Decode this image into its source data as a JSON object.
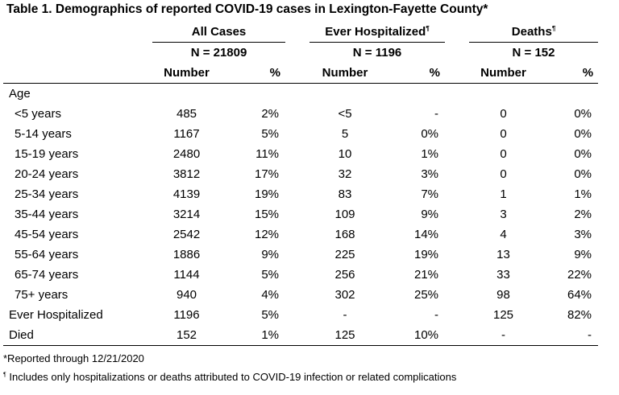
{
  "title": "Table 1. Demographics of reported COVID-19 cases in Lexington-Fayette County*",
  "groups": [
    {
      "label": "All Cases",
      "marker": "",
      "n": "N = 21809"
    },
    {
      "label": "Ever Hospitalized",
      "marker": "¶",
      "n": "N = 1196"
    },
    {
      "label": "Deaths",
      "marker": "¶",
      "n": "N = 152"
    }
  ],
  "column_headers": {
    "number": "Number",
    "percent": "%"
  },
  "section_label": "Age",
  "rows": [
    {
      "label": "<5 years",
      "cells": [
        "485",
        "2%",
        "<5",
        "-",
        "0",
        "0%"
      ]
    },
    {
      "label": "5-14 years",
      "cells": [
        "1167",
        "5%",
        "5",
        "0%",
        "0",
        "0%"
      ]
    },
    {
      "label": "15-19 years",
      "cells": [
        "2480",
        "11%",
        "10",
        "1%",
        "0",
        "0%"
      ]
    },
    {
      "label": "20-24 years",
      "cells": [
        "3812",
        "17%",
        "32",
        "3%",
        "0",
        "0%"
      ]
    },
    {
      "label": "25-34 years",
      "cells": [
        "4139",
        "19%",
        "83",
        "7%",
        "1",
        "1%"
      ]
    },
    {
      "label": "35-44 years",
      "cells": [
        "3214",
        "15%",
        "109",
        "9%",
        "3",
        "2%"
      ]
    },
    {
      "label": "45-54 years",
      "cells": [
        "2542",
        "12%",
        "168",
        "14%",
        "4",
        "3%"
      ]
    },
    {
      "label": "55-64 years",
      "cells": [
        "1886",
        "9%",
        "225",
        "19%",
        "13",
        "9%"
      ]
    },
    {
      "label": "65-74 years",
      "cells": [
        "1144",
        "5%",
        "256",
        "21%",
        "33",
        "22%"
      ]
    },
    {
      "label": "75+ years",
      "cells": [
        "940",
        "4%",
        "302",
        "25%",
        "98",
        "64%"
      ]
    }
  ],
  "summary_rows": [
    {
      "label": "Ever Hospitalized",
      "cells": [
        "1196",
        "5%",
        "-",
        "-",
        "125",
        "82%"
      ]
    },
    {
      "label": "Died",
      "cells": [
        "152",
        "1%",
        "125",
        "10%",
        "-",
        "-"
      ]
    }
  ],
  "footnotes": {
    "reported": "*Reported through 12/21/2020",
    "marker": "¶",
    "includes": " Includes only hospitalizations or deaths attributed to COVID-19 infection or related complications"
  }
}
